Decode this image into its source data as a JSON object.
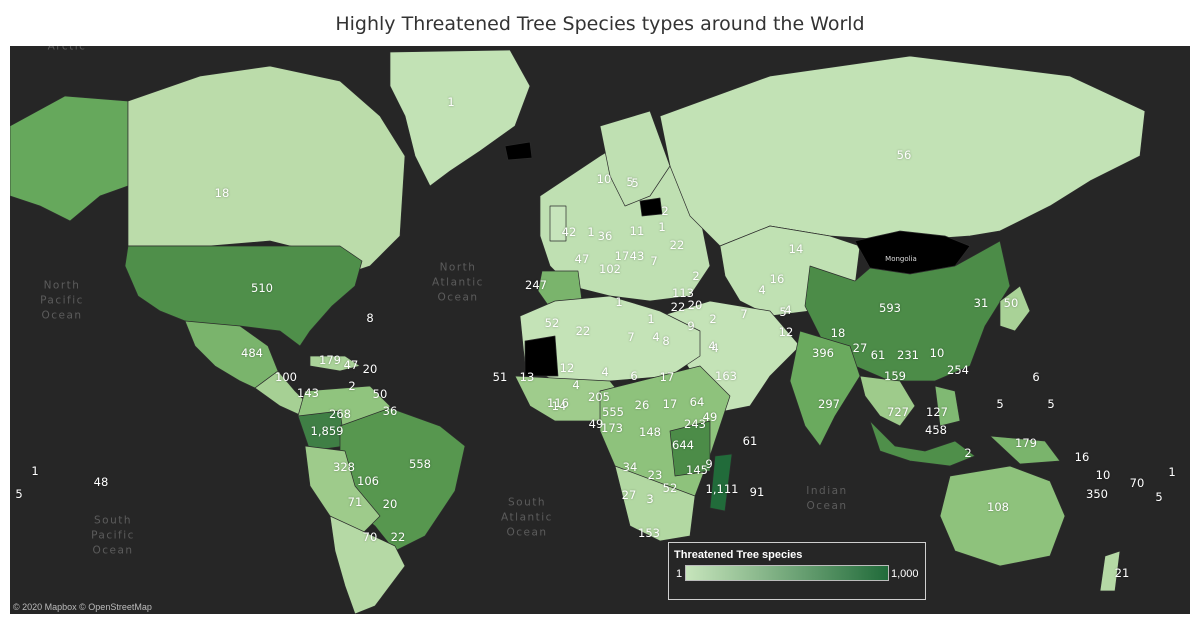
{
  "title": "Highly Threatened Tree Species types around the World",
  "credit": "© 2020 Mapbox © OpenStreetMap",
  "legend": {
    "title": "Threatened Tree species",
    "min_label": "1",
    "max_label": "1,000",
    "color_min": "#c7e5bc",
    "color_max": "#216b3a"
  },
  "colors": {
    "ocean": "#262626",
    "no_data": "#000000",
    "border": "#2c2c2c"
  },
  "ocean_labels": [
    {
      "text": "North\nPacific\nOcean"
    },
    {
      "text": "North\nAtlantic\nOcean"
    },
    {
      "text": "South\nAtlantic\nOcean"
    },
    {
      "text": "Indian\nOcean"
    },
    {
      "text": "South\nPacific\nOcean"
    }
  ],
  "place_labels": [
    {
      "text": "Mongolia"
    },
    {
      "text": "Arctic"
    }
  ],
  "region_values": [
    "1",
    "18",
    "510",
    "484",
    "56",
    "593",
    "14",
    "396",
    "558",
    "1,859",
    "328",
    "268",
    "106",
    "70",
    "71",
    "20",
    "22",
    "247",
    "52",
    "22",
    "7",
    "8",
    "12",
    "4",
    "6",
    "4",
    "17",
    "205",
    "555",
    "26",
    "173",
    "148",
    "644",
    "243",
    "34",
    "23",
    "27",
    "3",
    "52",
    "153",
    "1,111",
    "108",
    "727",
    "458",
    "127",
    "179",
    "254",
    "297",
    "159",
    "231",
    "61",
    "18",
    "27",
    "163",
    "113",
    "5",
    "36",
    "11",
    "1",
    "22",
    "47",
    "102",
    "7",
    "10",
    "5",
    "2",
    "1",
    "2",
    "42",
    "1",
    "43",
    "17",
    "4",
    "4",
    "16",
    "4",
    "12",
    "5",
    "7",
    "22",
    "20",
    "9",
    "2",
    "4",
    "14",
    "116",
    "51",
    "8",
    "47",
    "179",
    "20",
    "100",
    "143",
    "50",
    "2",
    "36",
    "49",
    "64",
    "17",
    "49",
    "145",
    "9",
    "61",
    "91",
    "16",
    "10",
    "350",
    "70",
    "5",
    "1",
    "5",
    "48",
    "1",
    "6",
    "5",
    "5",
    "2",
    "10",
    "31",
    "50",
    "21",
    "13",
    "1",
    "4"
  ]
}
